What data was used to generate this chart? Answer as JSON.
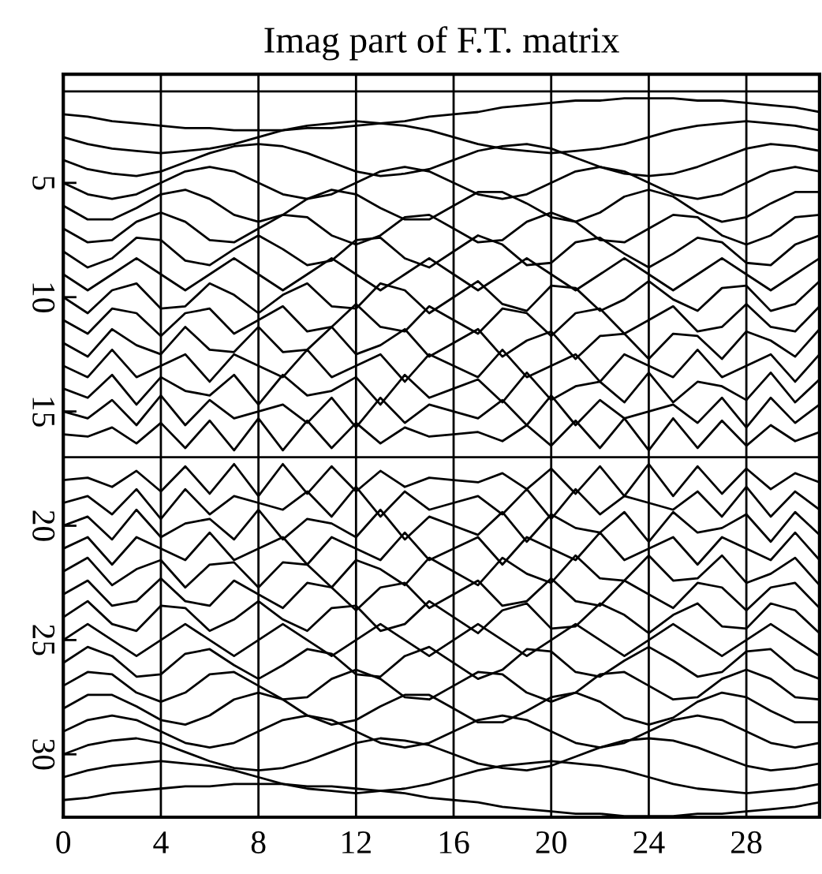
{
  "chart_data": {
    "type": "line",
    "title": "Imag part of F.T. matrix",
    "x": [
      0,
      1,
      2,
      3,
      4,
      5,
      6,
      7,
      8,
      9,
      10,
      11,
      12,
      13,
      14,
      15,
      16,
      17,
      18,
      19,
      20,
      21,
      22,
      23,
      24,
      25,
      26,
      27,
      28,
      29,
      30,
      31
    ],
    "xlim": [
      0,
      31
    ],
    "xticks": [
      0,
      4,
      8,
      12,
      16,
      20,
      24,
      28
    ],
    "ylim": [
      32.75,
      0.25
    ],
    "yticks": [
      5,
      10,
      15,
      20,
      25,
      30
    ],
    "grid": "x",
    "line_style": "solid",
    "series": [
      {
        "color": "#000000",
        "values": [
          1,
          1,
          1,
          1,
          1,
          1,
          1,
          1,
          1,
          1,
          1,
          1,
          1,
          1,
          1,
          1,
          1,
          1,
          1,
          1,
          1,
          1,
          1,
          1,
          1,
          1,
          1,
          1,
          1,
          1,
          1,
          1
        ]
      },
      {
        "color": "#000000",
        "values": [
          2,
          2.1,
          2.3,
          2.4,
          2.5,
          2.6,
          2.6,
          2.7,
          2.7,
          2.7,
          2.6,
          2.6,
          2.5,
          2.4,
          2.3,
          2.1,
          2,
          1.9,
          1.7,
          1.6,
          1.5,
          1.4,
          1.4,
          1.3,
          1.3,
          1.3,
          1.4,
          1.4,
          1.5,
          1.6,
          1.7,
          1.9
        ]
      },
      {
        "color": "#000000",
        "values": [
          3,
          3.3,
          3.5,
          3.6,
          3.7,
          3.6,
          3.5,
          3.3,
          3,
          2.7,
          2.5,
          2.4,
          2.3,
          2.4,
          2.5,
          2.7,
          3,
          3.3,
          3.5,
          3.6,
          3.7,
          3.6,
          3.5,
          3.3,
          3,
          2.7,
          2.5,
          2.4,
          2.3,
          2.4,
          2.5,
          2.7
        ]
      },
      {
        "color": "#000000",
        "values": [
          4,
          4.4,
          4.6,
          4.7,
          4.5,
          4.1,
          3.7,
          3.4,
          3.3,
          3.4,
          3.7,
          4.1,
          4.5,
          4.7,
          4.6,
          4.4,
          4,
          3.6,
          3.4,
          3.3,
          3.5,
          3.9,
          4.3,
          4.6,
          4.7,
          4.6,
          4.3,
          3.9,
          3.5,
          3.3,
          3.4,
          3.6
        ]
      },
      {
        "color": "#000000",
        "values": [
          5,
          5.5,
          5.7,
          5.5,
          5,
          4.5,
          4.3,
          4.5,
          5,
          5.5,
          5.7,
          5.5,
          5,
          4.5,
          4.3,
          4.5,
          5,
          5.5,
          5.7,
          5.5,
          5,
          4.5,
          4.3,
          4.5,
          5,
          5.5,
          5.7,
          5.5,
          5,
          4.5,
          4.3,
          4.5
        ]
      },
      {
        "color": "#000000",
        "values": [
          6,
          6.6,
          6.6,
          6.1,
          5.5,
          5.3,
          5.7,
          6.4,
          6.7,
          6.4,
          5.7,
          5.3,
          5.5,
          6.1,
          6.6,
          6.6,
          6,
          5.4,
          5.4,
          5.9,
          6.5,
          6.7,
          6.3,
          5.6,
          5.3,
          5.6,
          6.3,
          6.7,
          6.5,
          5.9,
          5.4,
          5.4
        ]
      },
      {
        "color": "#000000",
        "values": [
          7,
          7.6,
          7.5,
          6.7,
          6.3,
          6.7,
          7.5,
          7.6,
          7,
          6.4,
          6.5,
          7.3,
          7.7,
          7.3,
          6.5,
          6.4,
          7,
          7.6,
          7.5,
          6.7,
          6.3,
          6.7,
          7.5,
          7.6,
          7,
          6.4,
          6.5,
          7.3,
          7.7,
          7.3,
          6.5,
          6.4
        ]
      },
      {
        "color": "#000000",
        "values": [
          8,
          8.7,
          8.3,
          7.4,
          7.5,
          8.4,
          8.6,
          7.9,
          7.3,
          7.9,
          8.6,
          8.4,
          7.5,
          7.4,
          8.3,
          8.7,
          8,
          7.3,
          7.7,
          8.6,
          8.5,
          7.6,
          7.4,
          8.1,
          8.7,
          8.1,
          7.4,
          7.6,
          8.5,
          8.6,
          7.7,
          7.3
        ]
      },
      {
        "color": "#000000",
        "values": [
          9,
          9.7,
          9,
          8.3,
          9,
          9.7,
          9,
          8.3,
          9,
          9.7,
          9,
          8.3,
          9,
          9.7,
          9,
          8.3,
          9,
          9.7,
          9,
          8.3,
          9,
          9.7,
          9,
          8.3,
          9,
          9.7,
          9,
          8.3,
          9,
          9.7,
          9,
          8.3
        ]
      },
      {
        "color": "#000000",
        "values": [
          10,
          10.7,
          9.7,
          9.4,
          10.5,
          10.4,
          9.4,
          9.9,
          10.7,
          9.9,
          9.4,
          10.4,
          10.5,
          9.4,
          9.7,
          10.7,
          10,
          9.3,
          10.3,
          10.6,
          9.5,
          9.6,
          10.6,
          10.1,
          9.3,
          10.1,
          10.6,
          9.6,
          9.5,
          10.6,
          10.3,
          9.3
        ]
      },
      {
        "color": "#000000",
        "values": [
          11,
          11.6,
          10.5,
          10.7,
          11.7,
          10.7,
          10.5,
          11.6,
          11,
          10.4,
          11.5,
          11.3,
          10.3,
          11.3,
          11.5,
          10.4,
          11,
          11.6,
          10.5,
          10.7,
          11.7,
          10.7,
          10.5,
          11.6,
          11,
          10.4,
          11.5,
          11.3,
          10.3,
          11.3,
          11.5,
          10.4
        ]
      },
      {
        "color": "#000000",
        "values": [
          12,
          12.6,
          11.4,
          12.1,
          12.5,
          11.3,
          12.3,
          12.4,
          11.3,
          12.4,
          12.3,
          11.3,
          12.5,
          12.1,
          11.4,
          12.6,
          12,
          11.4,
          12.6,
          11.9,
          11.5,
          12.7,
          11.7,
          11.6,
          12.7,
          11.6,
          11.7,
          12.7,
          11.5,
          11.9,
          12.6,
          11.4
        ]
      },
      {
        "color": "#000000",
        "values": [
          13,
          13.5,
          12.3,
          13.5,
          13,
          12.5,
          13.7,
          12.5,
          13,
          13.5,
          12.3,
          13.5,
          13,
          12.5,
          13.7,
          12.5,
          13,
          13.5,
          12.3,
          13.5,
          13,
          12.5,
          13.7,
          12.5,
          13,
          13.5,
          12.3,
          13.5,
          13,
          12.5,
          13.7,
          12.5
        ]
      },
      {
        "color": "#000000",
        "values": [
          14,
          14.4,
          13.4,
          14.7,
          13.5,
          14.1,
          14.3,
          13.4,
          14.7,
          13.4,
          14.3,
          14.1,
          13.5,
          14.7,
          13.4,
          14.4,
          14,
          13.6,
          14.6,
          13.3,
          14.5,
          13.9,
          13.7,
          14.6,
          13.3,
          14.6,
          13.7,
          13.9,
          14.5,
          13.3,
          14.6,
          13.6
        ]
      },
      {
        "color": "#000000",
        "values": [
          15,
          15.3,
          14.5,
          15.6,
          14.3,
          15.6,
          14.5,
          15.3,
          15,
          14.7,
          15.5,
          14.4,
          15.7,
          14.4,
          15.5,
          14.7,
          15,
          15.3,
          14.5,
          15.6,
          14.3,
          15.6,
          14.5,
          15.3,
          15,
          14.7,
          15.5,
          14.4,
          15.7,
          14.4,
          15.5,
          14.7
        ]
      },
      {
        "color": "#000000",
        "values": [
          16,
          16.1,
          15.7,
          16.4,
          15.5,
          16.6,
          15.4,
          16.7,
          15.3,
          16.7,
          15.4,
          16.6,
          15.5,
          16.4,
          15.7,
          16.1,
          16,
          15.9,
          16.3,
          15.6,
          16.5,
          15.4,
          16.6,
          15.3,
          16.7,
          15.3,
          16.6,
          15.4,
          16.5,
          15.6,
          16.3,
          15.9
        ]
      },
      {
        "color": "#000000",
        "values": [
          17,
          17,
          17,
          17,
          17,
          17,
          17,
          17,
          17,
          17,
          17,
          17,
          17,
          17,
          17,
          17,
          17,
          17,
          17,
          17,
          17,
          17,
          17,
          17,
          17,
          17,
          17,
          17,
          17,
          17,
          17,
          17
        ]
      },
      {
        "color": "#000000",
        "values": [
          18,
          17.9,
          18.3,
          17.6,
          18.5,
          17.4,
          18.6,
          17.3,
          18.7,
          17.3,
          18.6,
          17.4,
          18.5,
          17.6,
          18.3,
          17.9,
          18,
          18.1,
          17.7,
          18.4,
          17.5,
          18.6,
          17.4,
          18.7,
          17.3,
          18.7,
          17.4,
          18.6,
          17.5,
          18.4,
          17.7,
          18.1
        ]
      },
      {
        "color": "#000000",
        "values": [
          19,
          18.7,
          19.5,
          18.4,
          19.7,
          18.4,
          19.5,
          18.7,
          19,
          19.3,
          18.5,
          19.6,
          18.3,
          19.6,
          18.5,
          19.3,
          19,
          18.7,
          19.5,
          18.4,
          19.7,
          18.4,
          19.5,
          18.7,
          19,
          19.3,
          18.5,
          19.6,
          18.3,
          19.6,
          18.5,
          19.3
        ]
      },
      {
        "color": "#000000",
        "values": [
          20,
          19.6,
          20.6,
          19.3,
          20.5,
          19.9,
          19.7,
          20.6,
          19.3,
          20.6,
          19.7,
          19.9,
          20.5,
          19.3,
          20.6,
          19.6,
          20,
          20.4,
          19.4,
          20.7,
          19.5,
          20.1,
          20.3,
          19.4,
          20.7,
          19.4,
          20.3,
          20.1,
          19.5,
          20.7,
          19.4,
          20.4
        ]
      },
      {
        "color": "#000000",
        "values": [
          21,
          20.5,
          21.7,
          20.5,
          21,
          21.5,
          20.3,
          21.5,
          21,
          20.5,
          21.7,
          20.5,
          21,
          21.5,
          20.3,
          21.5,
          21,
          20.5,
          21.7,
          20.5,
          21,
          21.5,
          20.3,
          21.5,
          21,
          20.5,
          21.7,
          20.5,
          21,
          21.5,
          20.3,
          21.5
        ]
      },
      {
        "color": "#000000",
        "values": [
          22,
          21.4,
          22.6,
          21.9,
          21.5,
          22.7,
          21.7,
          21.6,
          22.7,
          21.6,
          21.7,
          22.7,
          21.5,
          21.9,
          22.6,
          21.4,
          22,
          22.6,
          21.4,
          22.1,
          22.5,
          21.3,
          22.3,
          22.4,
          21.3,
          22.4,
          22.3,
          21.3,
          22.5,
          22.1,
          21.4,
          22.6
        ]
      },
      {
        "color": "#000000",
        "values": [
          23,
          22.4,
          23.5,
          23.3,
          22.3,
          23.3,
          23.5,
          22.4,
          23,
          23.6,
          22.5,
          22.7,
          23.7,
          22.7,
          22.5,
          23.6,
          23,
          22.4,
          23.5,
          23.3,
          22.3,
          23.3,
          23.5,
          22.4,
          23,
          23.6,
          22.5,
          22.7,
          23.7,
          22.7,
          22.5,
          23.6
        ]
      },
      {
        "color": "#000000",
        "values": [
          24,
          23.3,
          24.3,
          24.6,
          23.5,
          23.6,
          24.6,
          24.1,
          23.3,
          24.1,
          24.6,
          23.6,
          23.5,
          24.6,
          24.3,
          23.3,
          24,
          24.7,
          23.7,
          23.4,
          24.5,
          24.4,
          23.4,
          23.9,
          24.7,
          23.9,
          23.4,
          24.4,
          24.5,
          23.4,
          23.7,
          24.7
        ]
      },
      {
        "color": "#000000",
        "values": [
          25,
          24.3,
          25,
          25.7,
          25,
          24.3,
          25,
          25.7,
          25,
          24.3,
          25,
          25.7,
          25,
          24.3,
          25,
          25.7,
          25,
          24.3,
          25,
          25.7,
          25,
          24.3,
          25,
          25.7,
          25,
          24.3,
          25,
          25.7,
          25,
          24.3,
          25,
          25.7
        ]
      },
      {
        "color": "#000000",
        "values": [
          26,
          25.3,
          25.7,
          26.6,
          26.5,
          25.6,
          25.4,
          26.1,
          26.7,
          26.1,
          25.4,
          25.6,
          26.5,
          26.6,
          25.7,
          25.3,
          26,
          26.7,
          26.3,
          25.4,
          25.5,
          26.4,
          26.6,
          25.9,
          25.3,
          25.9,
          26.6,
          26.4,
          25.5,
          25.4,
          26.3,
          26.7
        ]
      },
      {
        "color": "#000000",
        "values": [
          27,
          26.4,
          26.5,
          27.3,
          27.7,
          27.3,
          26.5,
          26.4,
          27,
          27.6,
          27.5,
          26.7,
          26.3,
          26.7,
          27.5,
          27.6,
          27,
          26.4,
          26.5,
          27.3,
          27.7,
          27.3,
          26.5,
          26.4,
          27,
          27.6,
          27.5,
          26.7,
          26.3,
          26.7,
          27.5,
          27.6
        ]
      },
      {
        "color": "#000000",
        "values": [
          28,
          27.4,
          27.4,
          27.9,
          28.5,
          28.7,
          28.3,
          27.6,
          27.3,
          27.6,
          28.3,
          28.7,
          28.5,
          27.9,
          27.4,
          27.4,
          28,
          28.6,
          28.6,
          28.1,
          27.5,
          27.3,
          27.7,
          28.4,
          28.7,
          28.4,
          27.7,
          27.3,
          27.5,
          28.1,
          28.6,
          28.6
        ]
      },
      {
        "color": "#000000",
        "values": [
          29,
          28.5,
          28.3,
          28.5,
          29,
          29.5,
          29.7,
          29.5,
          29,
          28.5,
          28.3,
          28.5,
          29,
          29.5,
          29.7,
          29.5,
          29,
          28.5,
          28.3,
          28.5,
          29,
          29.5,
          29.7,
          29.5,
          29,
          28.5,
          28.3,
          28.5,
          29,
          29.5,
          29.7,
          29.5
        ]
      },
      {
        "color": "#000000",
        "values": [
          30,
          29.6,
          29.4,
          29.3,
          29.5,
          29.9,
          30.3,
          30.6,
          30.7,
          30.6,
          30.3,
          29.9,
          29.5,
          29.3,
          29.4,
          29.6,
          30,
          30.4,
          30.6,
          30.7,
          30.5,
          30.1,
          29.7,
          29.4,
          29.3,
          29.4,
          29.7,
          30.1,
          30.5,
          30.7,
          30.6,
          30.4
        ]
      },
      {
        "color": "#000000",
        "values": [
          31,
          30.7,
          30.5,
          30.4,
          30.3,
          30.4,
          30.5,
          30.7,
          31,
          31.3,
          31.5,
          31.6,
          31.7,
          31.6,
          31.5,
          31.3,
          31,
          30.7,
          30.5,
          30.4,
          30.3,
          30.4,
          30.5,
          30.7,
          31,
          31.3,
          31.5,
          31.6,
          31.7,
          31.6,
          31.5,
          31.3
        ]
      },
      {
        "color": "#000000",
        "values": [
          32,
          31.9,
          31.7,
          31.6,
          31.5,
          31.4,
          31.4,
          31.3,
          31.3,
          31.3,
          31.4,
          31.4,
          31.5,
          31.6,
          31.7,
          31.9,
          32,
          32.1,
          32.3,
          32.4,
          32.5,
          32.6,
          32.6,
          32.7,
          32.7,
          32.7,
          32.6,
          32.6,
          32.5,
          32.4,
          32.3,
          32.1
        ]
      }
    ]
  }
}
